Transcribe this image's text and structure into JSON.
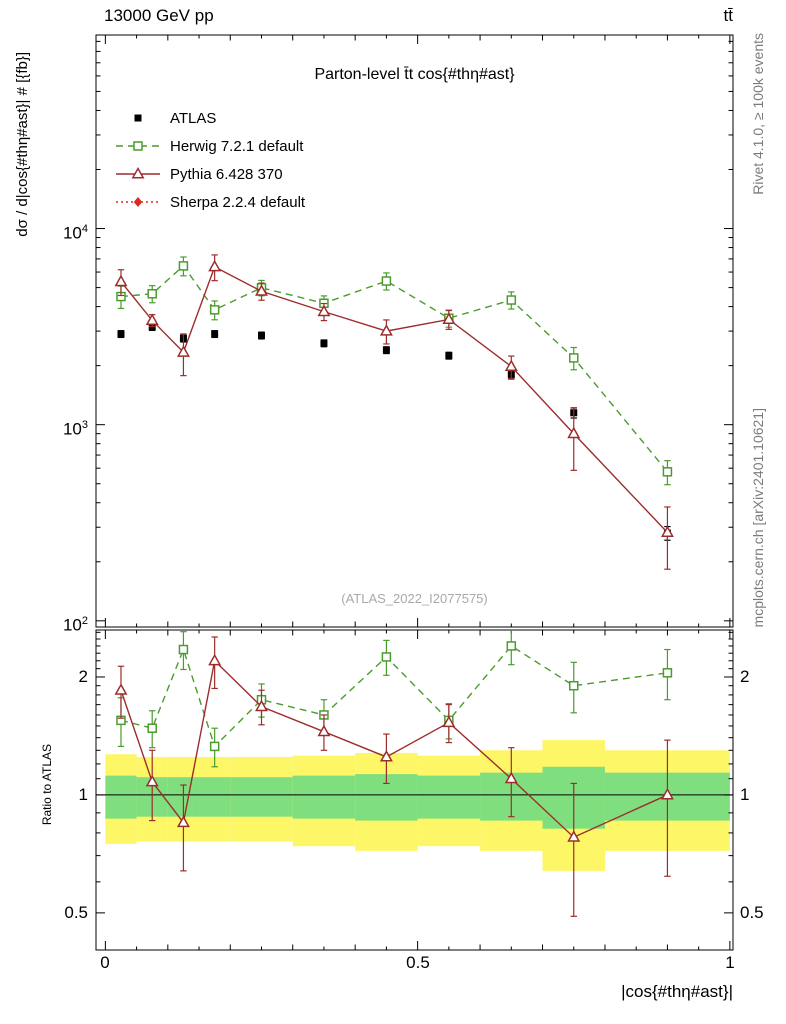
{
  "page": {
    "header_left": "13000 GeV pp",
    "header_right": "tt̄",
    "right_label_top": "Rivet 4.1.0, ≥ 100k events",
    "right_label_bottom": "mcplots.cern.ch [arXiv:2401.10621]",
    "watermark": "(ATLAS_2022_I2077575)"
  },
  "chart_data": {
    "type": "line",
    "title": "Parton-level t̄t cos{#thη#ast}",
    "xlabel": "|cos{#thη#ast}|",
    "ylabel_main": "dσ / d|cos{#thη#ast}| # [{fb}]",
    "ylabel_ratio": "Ratio to ATLAS",
    "yscale": "log",
    "xlim": [
      -0.015,
      1.005
    ],
    "main_ylim": [
      93,
      97000
    ],
    "ratio_ylim": [
      0.402,
      2.636
    ],
    "x": [
      0.025,
      0.075,
      0.125,
      0.175,
      0.25,
      0.35,
      0.45,
      0.55,
      0.65,
      0.75,
      0.9
    ],
    "axes": {
      "x_ticks": [
        {
          "value": 0,
          "label": "0"
        },
        {
          "value": 0.5,
          "label": "0.5"
        },
        {
          "value": 1,
          "label": "1"
        }
      ],
      "main_y_ticks": [
        {
          "value": 10000,
          "base": "10",
          "sup": "4"
        },
        {
          "value": 1000,
          "base": "10",
          "sup": "3"
        },
        {
          "value": 100,
          "base": "10",
          "sup": "2"
        }
      ],
      "ratio_y_ticks": [
        {
          "value": 2,
          "label": "2"
        },
        {
          "value": 1,
          "label": "1"
        },
        {
          "value": 0.5,
          "label": "0.5"
        }
      ]
    },
    "series": [
      {
        "name": "ATLAS",
        "color": "#000000",
        "marker": "square-filled",
        "line": "none",
        "values": [
          2900,
          3150,
          2750,
          2900,
          2850,
          2600,
          2400,
          2250,
          1800,
          1150,
          280
        ],
        "err_rel": [
          0.04,
          0.04,
          0.04,
          0.04,
          0.04,
          0.04,
          0.04,
          0.04,
          0.05,
          0.06,
          0.08
        ]
      },
      {
        "name": "Herwig 7.2.1 default",
        "color": "#4a9c2e",
        "marker": "square-open",
        "line": "dashed",
        "values": [
          4500,
          4650,
          6450,
          3850,
          4990,
          4160,
          5400,
          3490,
          4320,
          2190,
          575
        ],
        "err_rel": [
          0.13,
          0.1,
          0.11,
          0.11,
          0.09,
          0.09,
          0.1,
          0.1,
          0.1,
          0.13,
          0.14
        ],
        "ratio": [
          1.55,
          1.48,
          2.35,
          1.33,
          1.75,
          1.6,
          2.25,
          1.55,
          2.4,
          1.9,
          2.05
        ],
        "ratio_err": [
          0.22,
          0.16,
          0.26,
          0.15,
          0.17,
          0.15,
          0.23,
          0.16,
          0.25,
          0.28,
          0.3
        ]
      },
      {
        "name": "Pythia 6.428 370",
        "color": "#9d2d2d",
        "marker": "triangle-open",
        "line": "solid",
        "values": [
          5360,
          3400,
          2340,
          6380,
          4790,
          3770,
          3000,
          3440,
          1980,
          900,
          282
        ],
        "err_rel": [
          0.15,
          0.07,
          0.24,
          0.15,
          0.1,
          0.1,
          0.14,
          0.11,
          0.13,
          0.35,
          0.35
        ],
        "ratio": [
          1.85,
          1.08,
          0.85,
          2.2,
          1.68,
          1.45,
          1.25,
          1.53,
          1.1,
          0.78,
          1.0
        ],
        "ratio_err": [
          0.28,
          0.22,
          0.21,
          0.33,
          0.17,
          0.15,
          0.18,
          0.17,
          0.22,
          0.29,
          0.38
        ]
      },
      {
        "name": "Sherpa 2.2.4 default",
        "color": "#e02820",
        "marker": "diamond-filled",
        "line": "dotted",
        "values": [],
        "err_rel": []
      }
    ],
    "bands": {
      "bin_edges": [
        0,
        0.05,
        0.1,
        0.15,
        0.2,
        0.3,
        0.4,
        0.5,
        0.6,
        0.7,
        0.8,
        1.0
      ],
      "yellow_lo": [
        0.75,
        0.76,
        0.76,
        0.76,
        0.76,
        0.74,
        0.72,
        0.74,
        0.72,
        0.64,
        0.72
      ],
      "yellow_hi": [
        1.27,
        1.25,
        1.25,
        1.25,
        1.25,
        1.26,
        1.28,
        1.26,
        1.3,
        1.38,
        1.3
      ],
      "green_lo": [
        0.87,
        0.88,
        0.88,
        0.88,
        0.88,
        0.87,
        0.86,
        0.87,
        0.86,
        0.82,
        0.86
      ],
      "green_hi": [
        1.12,
        1.11,
        1.11,
        1.11,
        1.11,
        1.12,
        1.13,
        1.12,
        1.14,
        1.18,
        1.14
      ],
      "yellow_color": "#fdf666",
      "green_color": "#7fdf7f"
    }
  }
}
